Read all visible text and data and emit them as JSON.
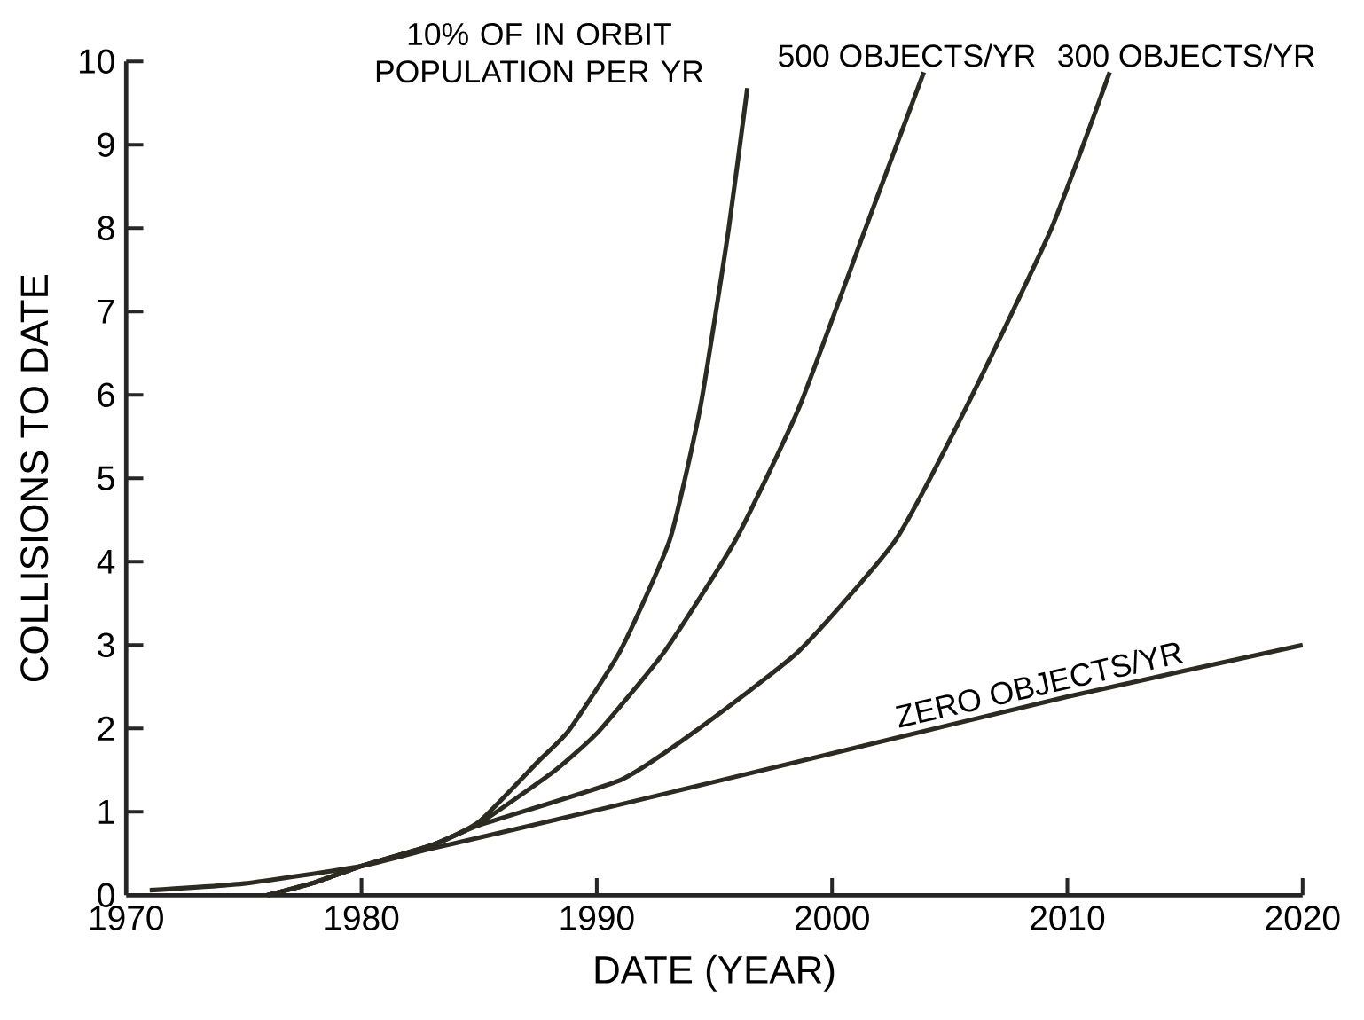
{
  "chart_data": {
    "type": "line",
    "xlabel": "DATE (YEAR)",
    "ylabel": "COLLISIONS TO DATE",
    "xlim": [
      1970,
      2020
    ],
    "ylim": [
      0,
      10
    ],
    "xticks": [
      1970,
      1980,
      1990,
      2000,
      2010,
      2020
    ],
    "yticks": [
      0,
      1,
      2,
      3,
      4,
      5,
      6,
      7,
      8,
      9,
      10
    ],
    "grid": false,
    "legend": false,
    "marker": "none",
    "line_style": "solid",
    "series": [
      {
        "name": "10% OF IN ORBIT POPULATION PER YR",
        "color": "#2b2b22",
        "x": [
          1976,
          1978,
          1980,
          1983,
          1985,
          1987.5,
          1988.8,
          1991.0,
          1993.1,
          1994.4,
          1995.6,
          1996.4
        ],
        "values": [
          0.0,
          0.15,
          0.35,
          0.6,
          0.88,
          1.6,
          1.97,
          2.93,
          4.26,
          5.85,
          7.98,
          9.68
        ]
      },
      {
        "name": "500 OBJECTS/YR",
        "color": "#2b2b22",
        "x": [
          1976,
          1978,
          1980,
          1983,
          1985,
          1988.2,
          1990.1,
          1992.9,
          1995.9,
          1998.6,
          2001.4,
          2003.9
        ],
        "values": [
          0.0,
          0.15,
          0.35,
          0.6,
          0.86,
          1.49,
          1.97,
          2.93,
          4.26,
          5.85,
          7.98,
          9.87
        ]
      },
      {
        "name": "300 OBJECTS/YR",
        "color": "#2b2b22",
        "x": [
          1976,
          1978,
          1980,
          1983,
          1985,
          1991.0,
          1994.2,
          1998.6,
          2002.7,
          2005.7,
          2009.3,
          2011.8
        ],
        "values": [
          0.0,
          0.15,
          0.35,
          0.6,
          0.84,
          1.38,
          1.97,
          2.93,
          4.26,
          5.85,
          7.98,
          9.87
        ]
      },
      {
        "name": "ZERO OBJECTS/YR",
        "color": "#2b2b22",
        "x": [
          1971,
          1975,
          1980,
          1983,
          1990,
          2000,
          2010,
          2020
        ],
        "values": [
          0.06,
          0.14,
          0.35,
          0.56,
          1.02,
          1.7,
          2.38,
          3.0
        ]
      }
    ]
  }
}
